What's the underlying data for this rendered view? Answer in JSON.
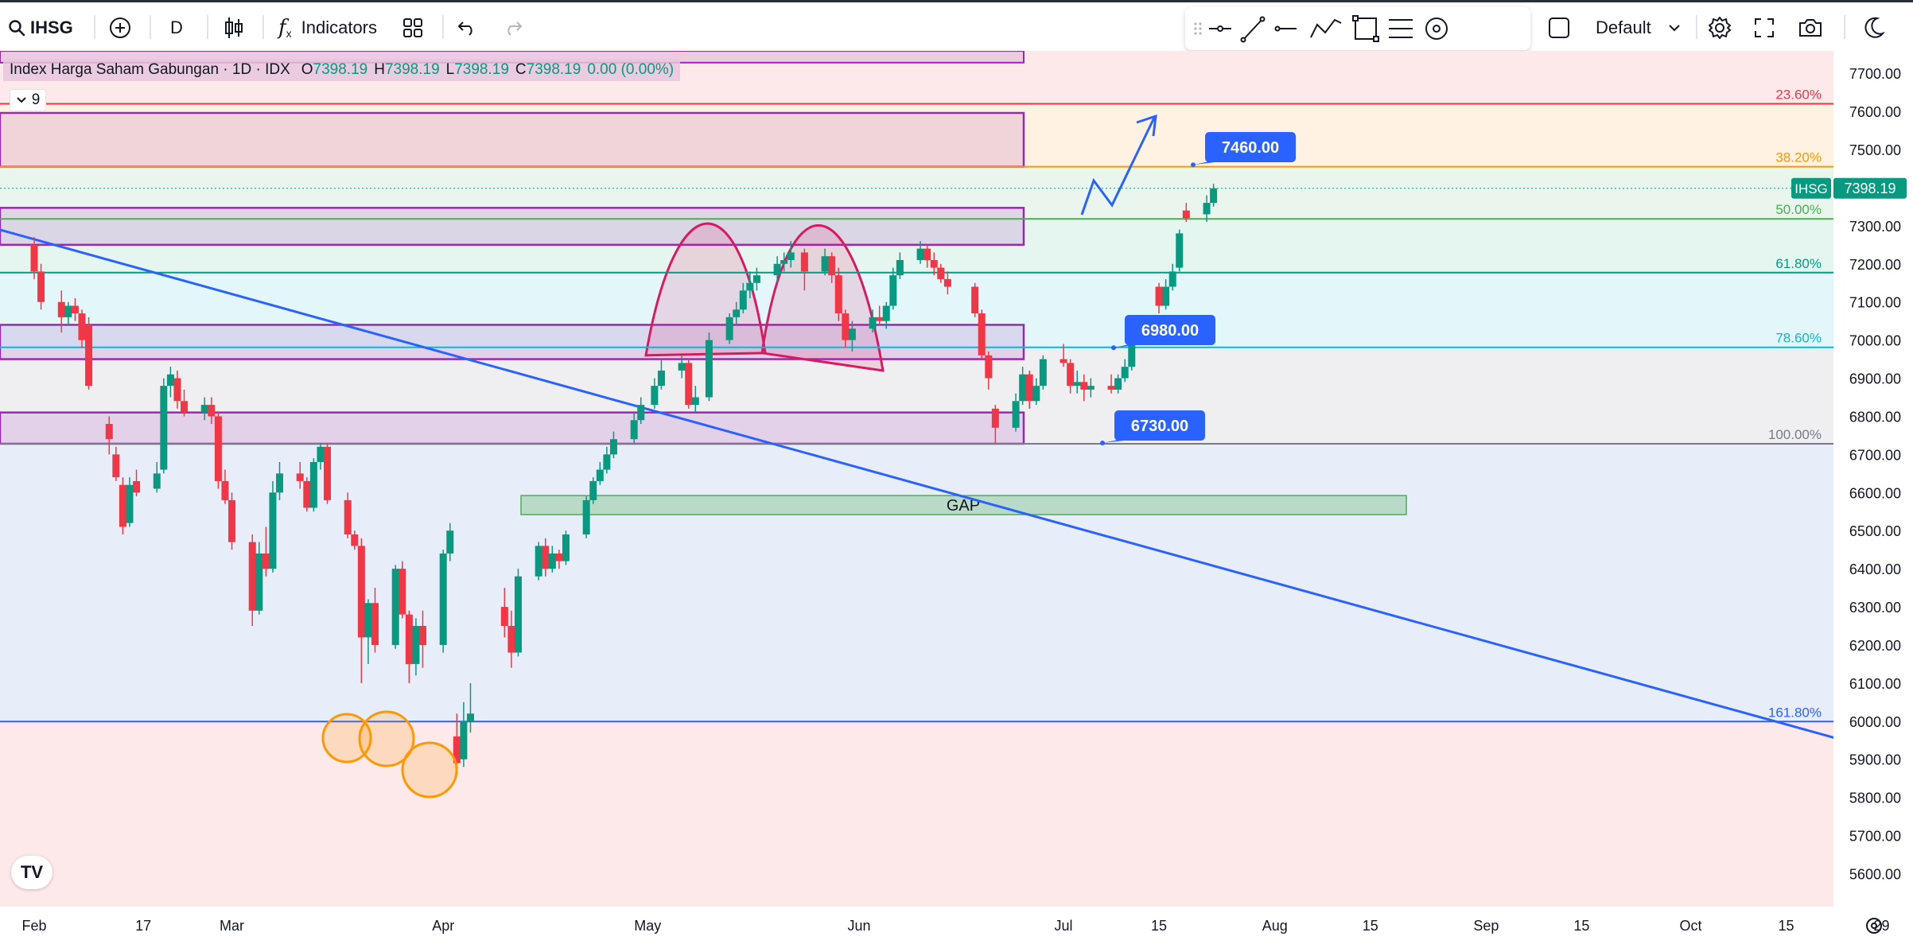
{
  "toolbar": {
    "symbol": "IHSG",
    "interval": "D",
    "indicators_label": "Indicators",
    "layout_name": "Default"
  },
  "legend": {
    "name": "Index Harga Saham Gabungan · 1D · IDX",
    "o_label": "O",
    "o_value": "7398.19",
    "h_label": "H",
    "h_value": "7398.19",
    "l_label": "L",
    "l_value": "7398.19",
    "c_label": "C",
    "c_value": "7398.19",
    "change": "0.00 (0.00%)",
    "collapsed_count": "9"
  },
  "colors": {
    "up": "#089981",
    "down": "#f23645",
    "trendline": "#2962ff",
    "box_border": "#9c27b0",
    "circle": "#ff9800"
  },
  "chart_data": {
    "type": "candlestick",
    "symbol": "IHSG",
    "last_price": 7398.19,
    "last_price_label": "7398.19",
    "ylim": [
      5600,
      7700
    ],
    "y_ticks": [
      "7700.00",
      "7600.00",
      "7500.00",
      "7400.00",
      "7300.00",
      "7200.00",
      "7100.00",
      "7000.00",
      "6900.00",
      "6800.00",
      "6700.00",
      "6600.00",
      "6500.00",
      "6400.00",
      "6300.00",
      "6200.00",
      "6100.00",
      "6000.00",
      "5900.00",
      "5800.00",
      "5700.00",
      "5600.00"
    ],
    "x_ticks": [
      {
        "label": "Feb",
        "date": "2024-02-01"
      },
      {
        "label": "17",
        "date": "2024-02-17"
      },
      {
        "label": "Mar",
        "date": "2024-03-01"
      },
      {
        "label": "Apr",
        "date": "2024-04-01"
      },
      {
        "label": "May",
        "date": "2024-05-01"
      },
      {
        "label": "Jun",
        "date": "2024-06-01"
      },
      {
        "label": "Jul",
        "date": "2024-07-01"
      },
      {
        "label": "15",
        "date": "2024-07-15"
      },
      {
        "label": "Aug",
        "date": "2024-08-01"
      },
      {
        "label": "15",
        "date": "2024-08-15"
      },
      {
        "label": "Sep",
        "date": "2024-09-01"
      },
      {
        "label": "15",
        "date": "2024-09-15"
      },
      {
        "label": "Oct",
        "date": "2024-10-01"
      },
      {
        "label": "15",
        "date": "2024-10-15"
      },
      {
        "label": "29",
        "date": "2024-10-29"
      }
    ],
    "fib_levels": [
      {
        "label": "23.60%",
        "price": 7620
      },
      {
        "label": "38.20%",
        "price": 7455
      },
      {
        "label": "50.00%",
        "price": 7318
      },
      {
        "label": "61.80%",
        "price": 7177
      },
      {
        "label": "78.60%",
        "price": 6981
      },
      {
        "label": "100.00%",
        "price": 6728
      },
      {
        "label": "161.80%",
        "price": 5999
      }
    ],
    "target_labels": [
      {
        "label": "7460.00",
        "price": 7460
      },
      {
        "label": "6980.00",
        "price": 6980
      },
      {
        "label": "6730.00",
        "price": 6730
      }
    ],
    "zones": [
      {
        "from": 7596,
        "to": 7455
      },
      {
        "from": 7347,
        "to": 7250
      },
      {
        "from": 7040,
        "to": 6950
      },
      {
        "from": 6810,
        "to": 6728
      }
    ],
    "gap": {
      "label": "GAP",
      "from": 6592,
      "to": 6542
    },
    "candles": [
      {
        "date": "2024-02-01",
        "o": 7250,
        "h": 7270,
        "l": 7160,
        "c": 7180
      },
      {
        "date": "2024-02-02",
        "o": 7180,
        "h": 7200,
        "l": 7080,
        "c": 7100
      },
      {
        "date": "2024-02-05",
        "o": 7100,
        "h": 7130,
        "l": 7020,
        "c": 7060
      },
      {
        "date": "2024-02-06",
        "o": 7060,
        "h": 7100,
        "l": 7040,
        "c": 7090
      },
      {
        "date": "2024-02-07",
        "o": 7090,
        "h": 7110,
        "l": 7050,
        "c": 7070
      },
      {
        "date": "2024-02-08",
        "o": 7070,
        "h": 7080,
        "l": 6980,
        "c": 7000
      },
      {
        "date": "2024-02-09",
        "o": 7040,
        "h": 7060,
        "l": 6870,
        "c": 6880
      },
      {
        "date": "2024-02-12",
        "o": 6780,
        "h": 6800,
        "l": 6700,
        "c": 6740
      },
      {
        "date": "2024-02-13",
        "o": 6700,
        "h": 6720,
        "l": 6630,
        "c": 6640
      },
      {
        "date": "2024-02-14",
        "o": 6620,
        "h": 6640,
        "l": 6490,
        "c": 6510
      },
      {
        "date": "2024-02-15",
        "o": 6520,
        "h": 6640,
        "l": 6510,
        "c": 6620
      },
      {
        "date": "2024-02-16",
        "o": 6630,
        "h": 6660,
        "l": 6590,
        "c": 6600
      },
      {
        "date": "2024-02-19",
        "o": 6610,
        "h": 6680,
        "l": 6600,
        "c": 6650
      },
      {
        "date": "2024-02-20",
        "o": 6660,
        "h": 6900,
        "l": 6650,
        "c": 6880
      },
      {
        "date": "2024-02-21",
        "o": 6880,
        "h": 6930,
        "l": 6850,
        "c": 6910
      },
      {
        "date": "2024-02-22",
        "o": 6900,
        "h": 6920,
        "l": 6820,
        "c": 6840
      },
      {
        "date": "2024-02-23",
        "o": 6840,
        "h": 6870,
        "l": 6800,
        "c": 6810
      },
      {
        "date": "2024-02-26",
        "o": 6810,
        "h": 6850,
        "l": 6790,
        "c": 6830
      },
      {
        "date": "2024-02-27",
        "o": 6830,
        "h": 6850,
        "l": 6780,
        "c": 6800
      },
      {
        "date": "2024-02-28",
        "o": 6800,
        "h": 6810,
        "l": 6610,
        "c": 6630
      },
      {
        "date": "2024-02-29",
        "o": 6630,
        "h": 6660,
        "l": 6570,
        "c": 6580
      },
      {
        "date": "2024-03-01",
        "o": 6580,
        "h": 6600,
        "l": 6450,
        "c": 6470
      },
      {
        "date": "2024-03-04",
        "o": 6470,
        "h": 6490,
        "l": 6250,
        "c": 6290
      },
      {
        "date": "2024-03-05",
        "o": 6290,
        "h": 6470,
        "l": 6280,
        "c": 6440
      },
      {
        "date": "2024-03-06",
        "o": 6440,
        "h": 6510,
        "l": 6380,
        "c": 6400
      },
      {
        "date": "2024-03-07",
        "o": 6400,
        "h": 6630,
        "l": 6390,
        "c": 6600
      },
      {
        "date": "2024-03-08",
        "o": 6600,
        "h": 6680,
        "l": 6580,
        "c": 6650
      },
      {
        "date": "2024-03-11",
        "o": 6650,
        "h": 6680,
        "l": 6610,
        "c": 6630
      },
      {
        "date": "2024-03-12",
        "o": 6630,
        "h": 6640,
        "l": 6550,
        "c": 6560
      },
      {
        "date": "2024-03-13",
        "o": 6560,
        "h": 6690,
        "l": 6550,
        "c": 6680
      },
      {
        "date": "2024-03-14",
        "o": 6680,
        "h": 6730,
        "l": 6660,
        "c": 6720
      },
      {
        "date": "2024-03-15",
        "o": 6720,
        "h": 6730,
        "l": 6570,
        "c": 6580
      },
      {
        "date": "2024-03-18",
        "o": 6580,
        "h": 6600,
        "l": 6480,
        "c": 6490
      },
      {
        "date": "2024-03-19",
        "o": 6490,
        "h": 6500,
        "l": 6450,
        "c": 6460
      },
      {
        "date": "2024-03-20",
        "o": 6460,
        "h": 6480,
        "l": 6100,
        "c": 6220
      },
      {
        "date": "2024-03-21",
        "o": 6220,
        "h": 6320,
        "l": 6150,
        "c": 6310
      },
      {
        "date": "2024-03-22",
        "o": 6310,
        "h": 6350,
        "l": 6180,
        "c": 6200
      },
      {
        "date": "2024-03-25",
        "o": 6200,
        "h": 6410,
        "l": 6190,
        "c": 6400
      },
      {
        "date": "2024-03-26",
        "o": 6400,
        "h": 6420,
        "l": 6270,
        "c": 6280
      },
      {
        "date": "2024-03-27",
        "o": 6280,
        "h": 6290,
        "l": 6100,
        "c": 6150
      },
      {
        "date": "2024-03-28",
        "o": 6150,
        "h": 6270,
        "l": 6120,
        "c": 6250
      },
      {
        "date": "2024-03-29",
        "o": 6250,
        "h": 6290,
        "l": 6140,
        "c": 6200
      },
      {
        "date": "2024-04-01",
        "o": 6200,
        "h": 6450,
        "l": 6180,
        "c": 6440
      },
      {
        "date": "2024-04-02",
        "o": 6440,
        "h": 6520,
        "l": 6420,
        "c": 6500
      },
      {
        "date": "2024-04-03",
        "o": 5960,
        "h": 6020,
        "l": 5860,
        "c": 5890
      },
      {
        "date": "2024-04-04",
        "o": 5900,
        "h": 6050,
        "l": 5880,
        "c": 6000
      },
      {
        "date": "2024-04-05",
        "o": 6000,
        "h": 6100,
        "l": 5970,
        "c": 6020
      },
      {
        "date": "2024-04-10",
        "o": 6300,
        "h": 6350,
        "l": 6220,
        "c": 6250
      },
      {
        "date": "2024-04-11",
        "o": 6250,
        "h": 6290,
        "l": 6140,
        "c": 6180
      },
      {
        "date": "2024-04-12",
        "o": 6180,
        "h": 6400,
        "l": 6170,
        "c": 6380
      },
      {
        "date": "2024-04-15",
        "o": 6380,
        "h": 6470,
        "l": 6370,
        "c": 6460
      },
      {
        "date": "2024-04-16",
        "o": 6460,
        "h": 6480,
        "l": 6380,
        "c": 6400
      },
      {
        "date": "2024-04-17",
        "o": 6400,
        "h": 6460,
        "l": 6390,
        "c": 6440
      },
      {
        "date": "2024-04-18",
        "o": 6440,
        "h": 6450,
        "l": 6400,
        "c": 6420
      },
      {
        "date": "2024-04-19",
        "o": 6420,
        "h": 6500,
        "l": 6410,
        "c": 6490
      },
      {
        "date": "2024-04-22",
        "o": 6490,
        "h": 6590,
        "l": 6480,
        "c": 6580
      },
      {
        "date": "2024-04-23",
        "o": 6580,
        "h": 6640,
        "l": 6570,
        "c": 6630
      },
      {
        "date": "2024-04-24",
        "o": 6630,
        "h": 6680,
        "l": 6620,
        "c": 6660
      },
      {
        "date": "2024-04-25",
        "o": 6660,
        "h": 6720,
        "l": 6650,
        "c": 6700
      },
      {
        "date": "2024-04-26",
        "o": 6700,
        "h": 6760,
        "l": 6690,
        "c": 6740
      },
      {
        "date": "2024-04-29",
        "o": 6740,
        "h": 6810,
        "l": 6730,
        "c": 6790
      },
      {
        "date": "2024-04-30",
        "o": 6790,
        "h": 6850,
        "l": 6780,
        "c": 6830
      },
      {
        "date": "2024-05-02",
        "o": 6830,
        "h": 6900,
        "l": 6820,
        "c": 6880
      },
      {
        "date": "2024-05-03",
        "o": 6880,
        "h": 6950,
        "l": 6870,
        "c": 6920
      },
      {
        "date": "2024-05-06",
        "o": 6920,
        "h": 6960,
        "l": 6900,
        "c": 6940
      },
      {
        "date": "2024-05-07",
        "o": 6940,
        "h": 6950,
        "l": 6820,
        "c": 6830
      },
      {
        "date": "2024-05-08",
        "o": 6830,
        "h": 6880,
        "l": 6810,
        "c": 6850
      },
      {
        "date": "2024-05-10",
        "o": 6850,
        "h": 7020,
        "l": 6840,
        "c": 7000
      },
      {
        "date": "2024-05-13",
        "o": 7000,
        "h": 7070,
        "l": 6990,
        "c": 7060
      },
      {
        "date": "2024-05-14",
        "o": 7060,
        "h": 7100,
        "l": 7040,
        "c": 7080
      },
      {
        "date": "2024-05-15",
        "o": 7080,
        "h": 7150,
        "l": 7070,
        "c": 7130
      },
      {
        "date": "2024-05-16",
        "o": 7130,
        "h": 7180,
        "l": 7110,
        "c": 7150
      },
      {
        "date": "2024-05-17",
        "o": 7150,
        "h": 7190,
        "l": 7130,
        "c": 7170
      },
      {
        "date": "2024-05-20",
        "o": 7170,
        "h": 7220,
        "l": 7150,
        "c": 7200
      },
      {
        "date": "2024-05-21",
        "o": 7200,
        "h": 7230,
        "l": 7180,
        "c": 7210
      },
      {
        "date": "2024-05-22",
        "o": 7210,
        "h": 7260,
        "l": 7190,
        "c": 7230
      },
      {
        "date": "2024-05-24",
        "o": 7230,
        "h": 7240,
        "l": 7130,
        "c": 7180
      },
      {
        "date": "2024-05-27",
        "o": 7180,
        "h": 7240,
        "l": 7170,
        "c": 7220
      },
      {
        "date": "2024-05-28",
        "o": 7220,
        "h": 7230,
        "l": 7150,
        "c": 7170
      },
      {
        "date": "2024-05-29",
        "o": 7170,
        "h": 7190,
        "l": 7050,
        "c": 7070
      },
      {
        "date": "2024-05-30",
        "o": 7070,
        "h": 7080,
        "l": 6980,
        "c": 7000
      },
      {
        "date": "2024-05-31",
        "o": 7000,
        "h": 7050,
        "l": 6970,
        "c": 7030
      },
      {
        "date": "2024-06-03",
        "o": 7030,
        "h": 7080,
        "l": 7020,
        "c": 7060
      },
      {
        "date": "2024-06-04",
        "o": 7060,
        "h": 7090,
        "l": 7040,
        "c": 7050
      },
      {
        "date": "2024-06-05",
        "o": 7050,
        "h": 7100,
        "l": 7030,
        "c": 7090
      },
      {
        "date": "2024-06-06",
        "o": 7090,
        "h": 7190,
        "l": 7080,
        "c": 7170
      },
      {
        "date": "2024-06-07",
        "o": 7170,
        "h": 7230,
        "l": 7160,
        "c": 7210
      },
      {
        "date": "2024-06-10",
        "o": 7210,
        "h": 7260,
        "l": 7200,
        "c": 7240
      },
      {
        "date": "2024-06-11",
        "o": 7240,
        "h": 7250,
        "l": 7190,
        "c": 7210
      },
      {
        "date": "2024-06-12",
        "o": 7210,
        "h": 7230,
        "l": 7170,
        "c": 7190
      },
      {
        "date": "2024-06-13",
        "o": 7190,
        "h": 7200,
        "l": 7150,
        "c": 7160
      },
      {
        "date": "2024-06-14",
        "o": 7160,
        "h": 7180,
        "l": 7120,
        "c": 7140
      },
      {
        "date": "2024-06-18",
        "o": 7140,
        "h": 7150,
        "l": 7060,
        "c": 7070
      },
      {
        "date": "2024-06-19",
        "o": 7070,
        "h": 7080,
        "l": 6950,
        "c": 6960
      },
      {
        "date": "2024-06-20",
        "o": 6960,
        "h": 6970,
        "l": 6870,
        "c": 6900
      },
      {
        "date": "2024-06-21",
        "o": 6820,
        "h": 6830,
        "l": 6730,
        "c": 6770
      },
      {
        "date": "2024-06-24",
        "o": 6770,
        "h": 6860,
        "l": 6760,
        "c": 6840
      },
      {
        "date": "2024-06-25",
        "o": 6840,
        "h": 6930,
        "l": 6830,
        "c": 6910
      },
      {
        "date": "2024-06-26",
        "o": 6910,
        "h": 6920,
        "l": 6820,
        "c": 6840
      },
      {
        "date": "2024-06-27",
        "o": 6840,
        "h": 6900,
        "l": 6830,
        "c": 6880
      },
      {
        "date": "2024-06-28",
        "o": 6880,
        "h": 6960,
        "l": 6870,
        "c": 6950
      },
      {
        "date": "2024-07-01",
        "o": 6950,
        "h": 6990,
        "l": 6930,
        "c": 6940
      },
      {
        "date": "2024-07-02",
        "o": 6940,
        "h": 6950,
        "l": 6860,
        "c": 6880
      },
      {
        "date": "2024-07-03",
        "o": 6880,
        "h": 6920,
        "l": 6860,
        "c": 6890
      },
      {
        "date": "2024-07-04",
        "o": 6890,
        "h": 6910,
        "l": 6840,
        "c": 6870
      },
      {
        "date": "2024-07-05",
        "o": 6870,
        "h": 6900,
        "l": 6850,
        "c": 6880
      },
      {
        "date": "2024-07-08",
        "o": 6880,
        "h": 6910,
        "l": 6860,
        "c": 6870
      },
      {
        "date": "2024-07-09",
        "o": 6870,
        "h": 6910,
        "l": 6860,
        "c": 6900
      },
      {
        "date": "2024-07-10",
        "o": 6900,
        "h": 6950,
        "l": 6890,
        "c": 6930
      },
      {
        "date": "2024-07-11",
        "o": 6930,
        "h": 7010,
        "l": 6920,
        "c": 7000
      },
      {
        "date": "2024-07-12",
        "o": 7000,
        "h": 7060,
        "l": 6990,
        "c": 7050
      },
      {
        "date": "2024-07-15",
        "o": 7140,
        "h": 7150,
        "l": 7070,
        "c": 7090
      },
      {
        "date": "2024-07-16",
        "o": 7090,
        "h": 7160,
        "l": 7080,
        "c": 7140
      },
      {
        "date": "2024-07-17",
        "o": 7140,
        "h": 7200,
        "l": 7130,
        "c": 7180
      },
      {
        "date": "2024-07-18",
        "o": 7190,
        "h": 7290,
        "l": 7180,
        "c": 7280
      },
      {
        "date": "2024-07-19",
        "o": 7340,
        "h": 7360,
        "l": 7310,
        "c": 7320
      },
      {
        "date": "2024-07-22",
        "o": 7330,
        "h": 7380,
        "l": 7310,
        "c": 7360
      },
      {
        "date": "2024-07-23",
        "o": 7360,
        "h": 7410,
        "l": 7350,
        "c": 7398.19
      }
    ]
  }
}
